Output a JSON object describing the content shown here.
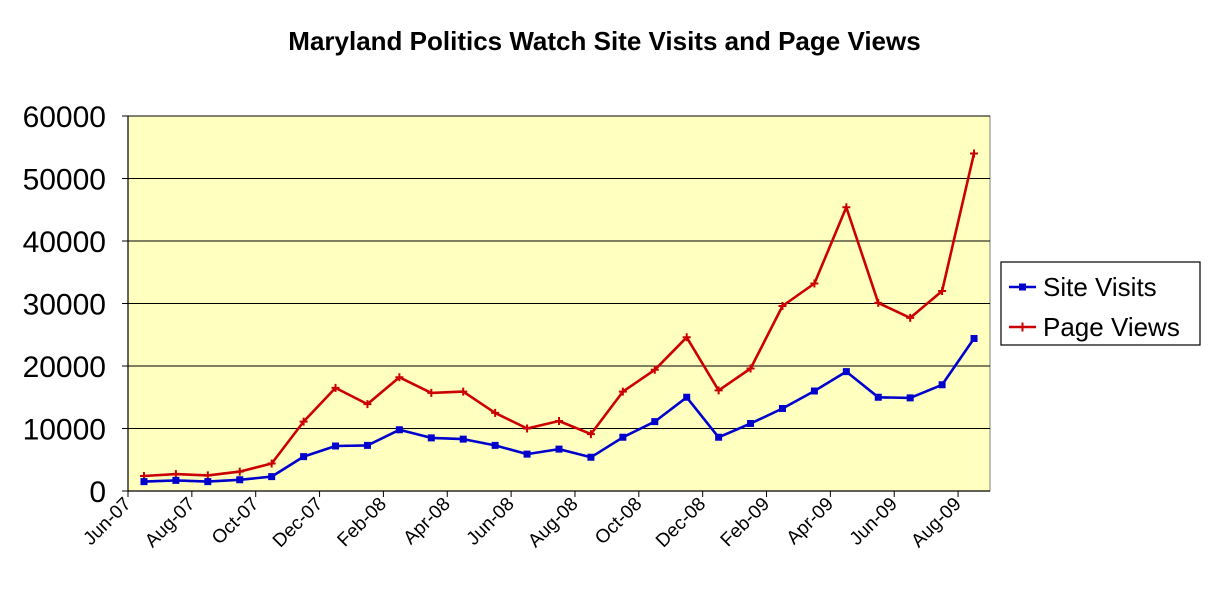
{
  "chart_data": {
    "type": "line",
    "title": "Maryland Politics Watch Site Visits and Page Views",
    "xlabel": "",
    "ylabel": "",
    "ylim": [
      0,
      60000
    ],
    "yticks": [
      "0",
      "10000",
      "20000",
      "30000",
      "40000",
      "50000",
      "60000"
    ],
    "xticks": [
      "Jun-07",
      "Aug-07",
      "Oct-07",
      "Dec-07",
      "Feb-08",
      "Apr-08",
      "Jun-08",
      "Aug-08",
      "Oct-08",
      "Dec-08",
      "Feb-09",
      "Apr-09",
      "Jun-09",
      "Aug-09"
    ],
    "x": [
      "Jul-07",
      "Aug-07",
      "Sep-07",
      "Oct-07",
      "Nov-07",
      "Dec-07",
      "Jan-08",
      "Feb-08",
      "Mar-08",
      "Apr-08",
      "May-08",
      "Jun-08",
      "Jul-08",
      "Aug-08",
      "Sep-08",
      "Oct-08",
      "Nov-08",
      "Dec-08",
      "Jan-09",
      "Feb-09",
      "Mar-09",
      "Apr-09",
      "May-09",
      "Jun-09",
      "Jul-09",
      "Aug-09",
      "Sep-09"
    ],
    "grid": true,
    "legend_position": "right",
    "plot_background": "#ffffc0",
    "series": [
      {
        "name": "Site Visits",
        "color": "#0000cc",
        "marker": "square",
        "values": [
          1500,
          1700,
          1500,
          1800,
          2300,
          5500,
          7200,
          7300,
          9800,
          8500,
          8300,
          7300,
          5900,
          6700,
          5400,
          8600,
          11100,
          15000,
          8600,
          10800,
          13200,
          16000,
          19100,
          15000,
          14900,
          17000,
          24400
        ]
      },
      {
        "name": "Page Views",
        "color": "#cc0000",
        "marker": "plus",
        "values": [
          2400,
          2700,
          2500,
          3100,
          4400,
          11100,
          16500,
          13900,
          18200,
          15700,
          15900,
          12500,
          10000,
          11200,
          9100,
          15900,
          19400,
          24600,
          16100,
          19600,
          29600,
          33200,
          45400,
          30100,
          27700,
          32000,
          54000
        ]
      }
    ]
  }
}
